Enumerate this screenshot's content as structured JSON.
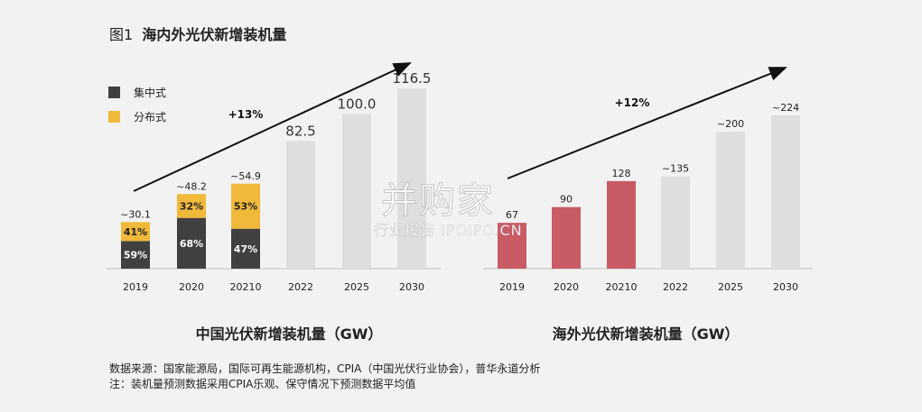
{
  "figure": {
    "number": "图1",
    "title": "海内外光伏新增装机量"
  },
  "legend": {
    "items": [
      {
        "label": "集中式",
        "color": "#404040"
      },
      {
        "label": "分布式",
        "color": "#f0b93a"
      }
    ]
  },
  "chart_data": [
    {
      "type": "bar",
      "caption": "中国光伏新增装机量（GW）",
      "categories": [
        "2019",
        "2020",
        "20210",
        "2022",
        "2025",
        "2030"
      ],
      "totals": [
        30.1,
        48.2,
        54.9,
        82.5,
        100.0,
        116.5
      ],
      "total_labels": [
        "~30.1",
        "~48.2",
        "~54.9",
        "82.5",
        "100.0",
        "116.5"
      ],
      "series": [
        {
          "name": "集中式",
          "values": [
            17.8,
            32.8,
            25.8,
            null,
            null,
            null
          ],
          "pct_labels": [
            "59%",
            "68%",
            "47%",
            "",
            "",
            ""
          ],
          "color": "#404040"
        },
        {
          "name": "分布式",
          "values": [
            12.3,
            15.4,
            29.1,
            null,
            null,
            null
          ],
          "pct_labels": [
            "41%",
            "32%",
            "53%",
            "",
            "",
            ""
          ],
          "color": "#f0b93a"
        }
      ],
      "forecast_color": "#dedede",
      "growth_label": "+13%",
      "ylim": [
        0,
        116.5
      ]
    },
    {
      "type": "bar",
      "caption": "海外光伏新增装机量（GW）",
      "categories": [
        "2019",
        "2020",
        "20210",
        "2022",
        "2025",
        "2030"
      ],
      "values": [
        67,
        90,
        128,
        135,
        200,
        224
      ],
      "value_labels": [
        "67",
        "90",
        "128",
        "~135",
        "~200",
        "~224"
      ],
      "colors": [
        "#c95b66",
        "#c95b66",
        "#c95b66",
        "#dedede",
        "#dedede",
        "#dedede"
      ],
      "growth_label": "+12%",
      "ylim": [
        0,
        224
      ]
    }
  ],
  "source_lines": [
    "数据来源：国家能源局，国际可再生能源机构，CPIA（中国光伏行业协会），普华永道分析",
    "注：装机量预测数据采用CPIA乐观、保守情况下预测数据平均值"
  ],
  "watermark": {
    "main": "并购家",
    "sub": "行业报告 IPOIPO.CN"
  }
}
